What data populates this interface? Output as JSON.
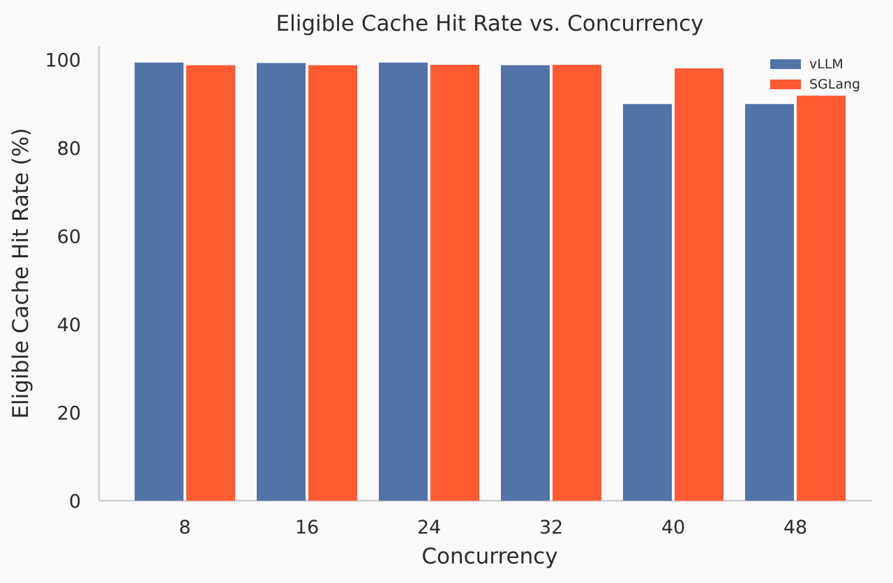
{
  "chart_data": {
    "type": "bar",
    "title": "Eligible Cache Hit Rate vs. Concurrency",
    "xlabel": "Concurrency",
    "ylabel": "Eligible Cache Hit Rate (%)",
    "categories": [
      "8",
      "16",
      "24",
      "32",
      "40",
      "48"
    ],
    "series": [
      {
        "name": "vLLM",
        "color": "#5273a8",
        "values": [
          99.3,
          99.2,
          99.3,
          98.7,
          89.9,
          89.9
        ]
      },
      {
        "name": "SGLang",
        "color": "#ff5a32",
        "values": [
          98.7,
          98.7,
          98.8,
          98.8,
          98.0,
          91.8
        ]
      }
    ],
    "ylim": [
      0,
      104
    ],
    "yticks": [
      0,
      20,
      40,
      60,
      80,
      100
    ],
    "grid": false,
    "legend_position": "top-right"
  }
}
